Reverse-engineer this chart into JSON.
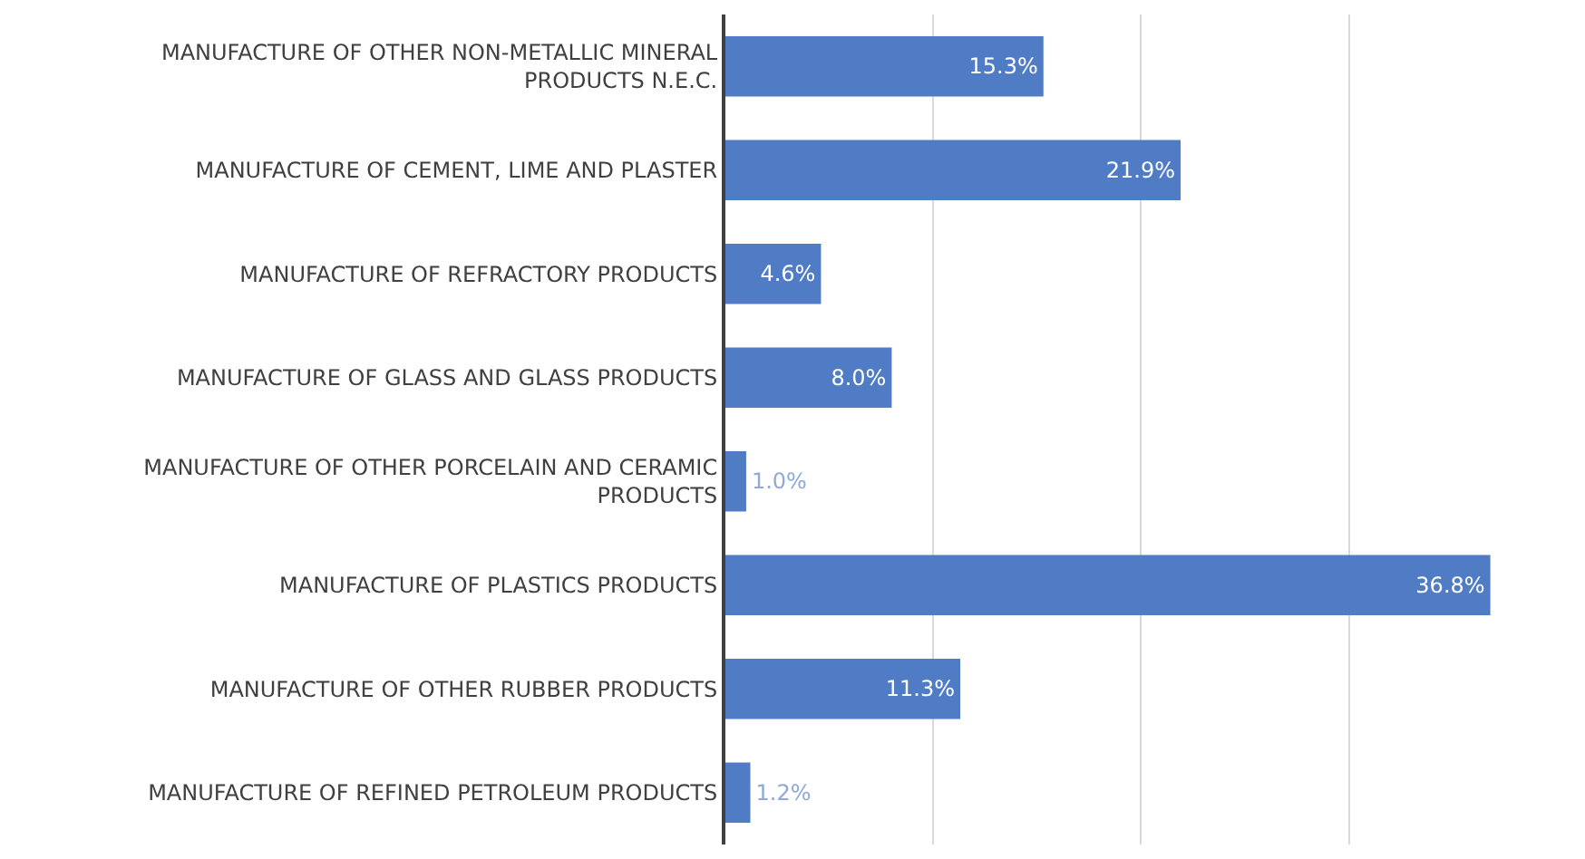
{
  "chart_data": {
    "type": "bar",
    "orientation": "horizontal",
    "categories": [
      "MANUFACTURE OF OTHER NON-METALLIC MINERAL PRODUCTS N.E.C.",
      "MANUFACTURE OF CEMENT, LIME AND PLASTER",
      "MANUFACTURE OF REFRACTORY PRODUCTS",
      "MANUFACTURE OF GLASS AND GLASS PRODUCTS",
      "MANUFACTURE OF OTHER PORCELAIN AND CERAMIC PRODUCTS",
      "MANUFACTURE OF PLASTICS PRODUCTS",
      "MANUFACTURE OF OTHER RUBBER PRODUCTS",
      "MANUFACTURE OF REFINED PETROLEUM PRODUCTS"
    ],
    "values": [
      15.3,
      21.9,
      4.6,
      8.0,
      1.0,
      36.8,
      11.3,
      1.2
    ],
    "value_labels": [
      "15.3%",
      "21.9%",
      "4.6%",
      "8.0%",
      "1.0%",
      "36.8%",
      "11.3%",
      "1.2%"
    ],
    "color": "#4f7cc4",
    "grid": "x",
    "tick_labels": "y"
  }
}
